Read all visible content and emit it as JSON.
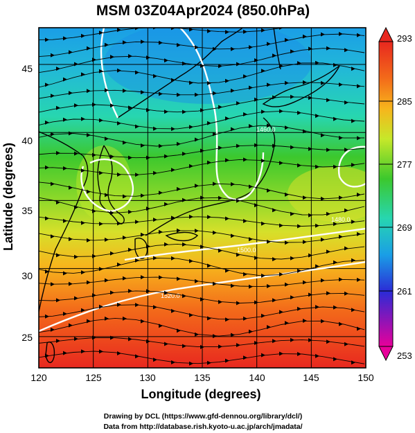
{
  "title": "MSM 03Z04Apr2024 (850.0hPa)",
  "x_axis": {
    "label": "Longitude (degrees)",
    "ticks": [
      "120",
      "125",
      "130",
      "135",
      "140",
      "145",
      "150"
    ],
    "range": [
      120,
      150
    ]
  },
  "y_axis": {
    "label": "Latitude  (degrees)",
    "ticks": [
      "25",
      "30",
      "35",
      "40",
      "45"
    ],
    "range": [
      22.7,
      47.7
    ]
  },
  "colorbar": {
    "ticks": [
      "293",
      "285",
      "277",
      "269",
      "261",
      "253"
    ],
    "range": [
      253,
      293
    ],
    "colors": [
      "#e8009a",
      "#2b2bd6",
      "#1a9ee6",
      "#27d6b0",
      "#3cc82d",
      "#c6e82a",
      "#f7b51c",
      "#f36a1a",
      "#e8281f"
    ]
  },
  "contours": [
    {
      "label": "1520.0",
      "color": "#ffffff"
    },
    {
      "label": "1500.0",
      "color": "#ffffff"
    },
    {
      "label": "1480.0",
      "color": "#ffffff"
    },
    {
      "label": "1460.0",
      "color": "#ffffff"
    },
    {
      "label": "1440.0",
      "color": "#ffffff"
    }
  ],
  "credits": {
    "line1": "Drawing by DCL (https://www.gfd-dennou.org/library/dcl/)",
    "line2": "Data from http://database.rish.kyoto-u.ac.jp/arch/jmadata/"
  }
}
